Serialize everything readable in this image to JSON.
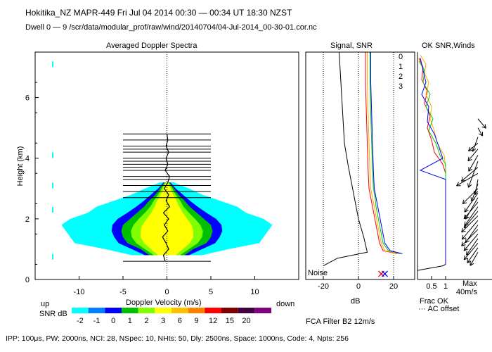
{
  "header": {
    "line1": "Hokitika_NZ   MAPR-449   Fri Jul 04 2014 00:30 — 00:34 UT 18:30 NZST",
    "line2": "Dwell   0 —  9     /scr/data/modular_prof/raw/wind/20140704/04-Jul-2014_00-30-01.cor.nc"
  },
  "footer": {
    "params": "IPP: 100μs,  PW: 2000ns,  NCI:  28,  NSpec: 10, NHts: 50,  Dly: 2500ns,  Space: 1000ns,  Code: 4,  Npts: 256",
    "fca": "FCA Filter B2 12m/s"
  },
  "colors": {
    "scale": [
      "#00ffff",
      "#0080ff",
      "#0000ff",
      "#00c000",
      "#80ff00",
      "#ffff00",
      "#ffc000",
      "#ff8000",
      "#ff0000",
      "#800000",
      "#400040",
      "#800080"
    ],
    "scale_labels": [
      "-2",
      "-1",
      "0",
      "1",
      "2",
      "3",
      "6",
      "9",
      "12",
      "15",
      "20"
    ],
    "snr_series": [
      "#000000",
      "#ff0000",
      "#ffaa00",
      "#00cc00",
      "#0000ff"
    ]
  },
  "chart_data": [
    {
      "type": "heatmap",
      "title": "Averaged Doppler Spectra",
      "xlabel": "Doppler Velocity (m/s)",
      "ylabel": "Height (km)",
      "x_ticks": [
        "-10",
        "-5",
        "0",
        "5",
        "10"
      ],
      "y_ticks": [
        "0",
        "2",
        "4",
        "6"
      ],
      "xlim": [
        -15,
        15
      ],
      "ylim": [
        0,
        7.5
      ],
      "side_labels": {
        "left": "up",
        "right": "down"
      },
      "colorbar": {
        "label": "SNR dB",
        "values": [
          "-2",
          "-1",
          "0",
          "1",
          "2",
          "3",
          "6",
          "9",
          "12",
          "15",
          "20"
        ]
      },
      "noise_label": "Noise",
      "envelope_heights_km": [
        0.8,
        1.0,
        1.2,
        1.4,
        1.6,
        1.8,
        2.0,
        2.2,
        2.4,
        2.6,
        2.8,
        3.0,
        3.2
      ],
      "envelopes": [
        {
          "snr": "-2",
          "halfwidth": [
            4,
            7,
            10.5,
            11,
            11.5,
            12,
            11,
            9,
            8,
            6,
            4,
            2.5,
            0.8
          ]
        },
        {
          "snr": "0",
          "halfwidth": [
            2.5,
            4,
            5.5,
            6,
            6.3,
            6.2,
            5.6,
            4.5,
            3.5,
            2.6,
            1.8,
            1,
            0.4
          ]
        },
        {
          "snr": "1",
          "halfwidth": [
            2,
            3,
            4.5,
            5,
            5.2,
            5,
            4.2,
            3.4,
            2.6,
            2,
            1.3,
            0.8,
            0.3
          ]
        },
        {
          "snr": "2",
          "halfwidth": [
            1.5,
            2.5,
            3.5,
            4,
            4.1,
            3.8,
            3.2,
            2.5,
            1.9,
            1.5,
            1,
            0.6,
            0.2
          ]
        },
        {
          "snr": "3",
          "halfwidth": [
            1,
            1.8,
            2.6,
            3,
            3,
            2.8,
            2.3,
            1.8,
            1.4,
            1.1,
            0.7,
            0.4,
            0.1
          ]
        }
      ],
      "hbar_heights_km": [
        0.6,
        2.7,
        2.9,
        3.1,
        3.3,
        3.4,
        3.6,
        3.7,
        3.8,
        3.9,
        4.0,
        4.2,
        4.3,
        4.4,
        4.6,
        4.8
      ],
      "hbar_halfwidth": 5.0,
      "mean_velocity_profile": {
        "heights_km": [
          0.6,
          0.8,
          1.0,
          1.2,
          1.4,
          1.6,
          1.8,
          2.0,
          2.2,
          2.4,
          2.6,
          2.8,
          3.0,
          3.2,
          3.4,
          3.6,
          3.8,
          4.0,
          4.2,
          4.4,
          4.6,
          4.8
        ],
        "velocity": [
          -0.2,
          -0.4,
          0.2,
          -0.1,
          -0.5,
          0.1,
          -0.3,
          0.2,
          -0.4,
          0.3,
          -0.1,
          0.2,
          -0.3,
          0.1,
          0.3,
          -0.2,
          0.1,
          -0.1,
          0.2,
          -0.1,
          0.1,
          0
        ]
      }
    },
    {
      "type": "line",
      "title": "Signal, SNR",
      "xlabel": "dB",
      "x_ticks": [
        "-20",
        "0",
        "20"
      ],
      "xlim": [
        -30,
        32
      ],
      "ylim": [
        0,
        7.5
      ],
      "series": [
        {
          "name": "0",
          "points": [
            [
              22,
              0.85
            ],
            [
              14,
              0.95
            ],
            [
              12,
              1.2
            ],
            [
              11,
              1.5
            ],
            [
              10,
              1.8
            ],
            [
              9,
              2.1
            ],
            [
              8,
              2.4
            ],
            [
              7,
              2.7
            ],
            [
              6,
              3.0
            ],
            [
              5.5,
              3.6
            ],
            [
              5,
              4.5
            ],
            [
              4.5,
              5.5
            ],
            [
              4,
              6.5
            ],
            [
              4,
              7.5
            ]
          ]
        },
        {
          "name": "1",
          "points": [
            [
              23,
              0.85
            ],
            [
              15,
              0.95
            ],
            [
              13,
              1.2
            ],
            [
              12,
              1.5
            ],
            [
              11,
              1.8
            ],
            [
              10,
              2.1
            ],
            [
              9,
              2.4
            ],
            [
              8,
              2.7
            ],
            [
              7,
              3.0
            ],
            [
              6.5,
              3.6
            ],
            [
              6,
              4.5
            ],
            [
              5.5,
              5.5
            ],
            [
              5,
              6.5
            ],
            [
              5,
              7.5
            ]
          ]
        },
        {
          "name": "2",
          "points": [
            [
              24,
              0.85
            ],
            [
              17,
              0.95
            ],
            [
              14,
              1.2
            ],
            [
              13,
              1.5
            ],
            [
              12,
              1.8
            ],
            [
              11,
              2.1
            ],
            [
              10,
              2.4
            ],
            [
              9.5,
              2.7
            ],
            [
              8.5,
              3.0
            ],
            [
              8,
              3.6
            ],
            [
              7.5,
              4.5
            ],
            [
              7,
              5.5
            ],
            [
              6.5,
              6.5
            ],
            [
              6.5,
              7.5
            ]
          ]
        },
        {
          "name": "3",
          "points": [
            [
              25,
              0.85
            ],
            [
              18,
              0.95
            ],
            [
              15,
              1.2
            ],
            [
              14,
              1.5
            ],
            [
              13,
              1.8
            ],
            [
              12,
              2.1
            ],
            [
              11,
              2.4
            ],
            [
              10,
              2.7
            ],
            [
              9,
              3.0
            ],
            [
              8.5,
              3.6
            ],
            [
              8,
              4.5
            ],
            [
              7.5,
              5.5
            ],
            [
              7,
              6.5
            ],
            [
              7,
              7.5
            ]
          ]
        },
        {
          "name": "",
          "points": [
            [
              -20,
              0.45
            ],
            [
              -12,
              0.7
            ],
            [
              5,
              0.9
            ],
            [
              3,
              1.4
            ],
            [
              0,
              2.0
            ],
            [
              -2,
              2.6
            ],
            [
              -4,
              3.2
            ],
            [
              -6,
              3.8
            ],
            [
              -8,
              4.5
            ],
            [
              -9,
              5.5
            ],
            [
              -10,
              6.5
            ],
            [
              -11,
              7.5
            ]
          ]
        }
      ],
      "vlines_x": [
        -20,
        0,
        20
      ],
      "noise_markers_x": [
        13,
        15
      ]
    },
    {
      "type": "line",
      "title": "OK SNR,Winds",
      "xlabel": "Frac OK",
      "x_ticks": [
        "0.5",
        "1"
      ],
      "xlim": [
        0,
        1.1
      ],
      "ylim": [
        0,
        7.5
      ],
      "legend_labels": [
        "0",
        "1",
        "2",
        "3"
      ],
      "axis_notes": [
        "Max",
        "40m/s"
      ],
      "ac_offset_label": "··· AC offset",
      "series": [
        {
          "name": "0",
          "points": [
            [
              0.05,
              7.3
            ],
            [
              0.2,
              7.0
            ],
            [
              0.15,
              6.6
            ],
            [
              0.35,
              6.2
            ],
            [
              0.25,
              5.8
            ],
            [
              0.45,
              5.4
            ],
            [
              0.35,
              5.0
            ],
            [
              0.5,
              4.6
            ],
            [
              0.6,
              4.2
            ],
            [
              0.9,
              3.8
            ],
            [
              1.0,
              3.5
            ],
            [
              1.0,
              0.5
            ]
          ]
        },
        {
          "name": "1",
          "points": [
            [
              0.1,
              7.4
            ],
            [
              0.3,
              7.1
            ],
            [
              0.25,
              6.8
            ],
            [
              0.4,
              6.5
            ],
            [
              0.3,
              6.1
            ],
            [
              0.5,
              5.7
            ],
            [
              0.45,
              5.3
            ],
            [
              0.6,
              4.9
            ],
            [
              0.7,
              4.5
            ],
            [
              0.95,
              4.1
            ],
            [
              1.0,
              3.7
            ],
            [
              1.0,
              0.5
            ]
          ]
        },
        {
          "name": "2",
          "points": [
            [
              0.05,
              7.2
            ],
            [
              0.25,
              6.9
            ],
            [
              0.2,
              6.5
            ],
            [
              0.45,
              6.1
            ],
            [
              0.3,
              5.7
            ],
            [
              0.55,
              5.3
            ],
            [
              0.4,
              4.9
            ],
            [
              0.65,
              4.5
            ],
            [
              0.8,
              4.1
            ],
            [
              1.0,
              3.8
            ],
            [
              1.0,
              0.5
            ]
          ]
        },
        {
          "name": "3",
          "points": [
            [
              0.1,
              7.3
            ],
            [
              0.2,
              6.9
            ],
            [
              0.3,
              6.5
            ],
            [
              0.15,
              6.1
            ],
            [
              0.4,
              5.7
            ],
            [
              0.35,
              5.2
            ],
            [
              0.6,
              4.8
            ],
            [
              0.75,
              4.4
            ],
            [
              0.9,
              4.0
            ],
            [
              0.1,
              3.6
            ],
            [
              1.0,
              3.3
            ],
            [
              1.0,
              0.5
            ]
          ]
        }
      ],
      "winds": {
        "heights_km": [
          0.9,
          1.05,
          1.2,
          1.35,
          1.5,
          1.65,
          1.8,
          1.95,
          2.1,
          2.25,
          2.4,
          2.55,
          2.7,
          2.85,
          3.0,
          3.15,
          3.3,
          3.5,
          3.7,
          3.9,
          4.1,
          4.3,
          4.5,
          4.7,
          5.0,
          5.3
        ],
        "speed_frac": [
          0.5,
          0.6,
          0.7,
          0.65,
          0.7,
          0.75,
          0.7,
          0.8,
          0.75,
          0.7,
          0.75,
          0.7,
          0.8,
          0.75,
          0.7,
          0.6,
          0.5,
          0.8,
          0.7,
          0.9,
          0.6,
          0.5,
          0.4,
          0.5,
          0.3,
          0.4
        ],
        "dir_deg": [
          210,
          215,
          220,
          215,
          220,
          225,
          215,
          220,
          225,
          220,
          215,
          220,
          210,
          215,
          225,
          200,
          190,
          240,
          230,
          200,
          210,
          220,
          230,
          200,
          150,
          140
        ]
      }
    }
  ]
}
